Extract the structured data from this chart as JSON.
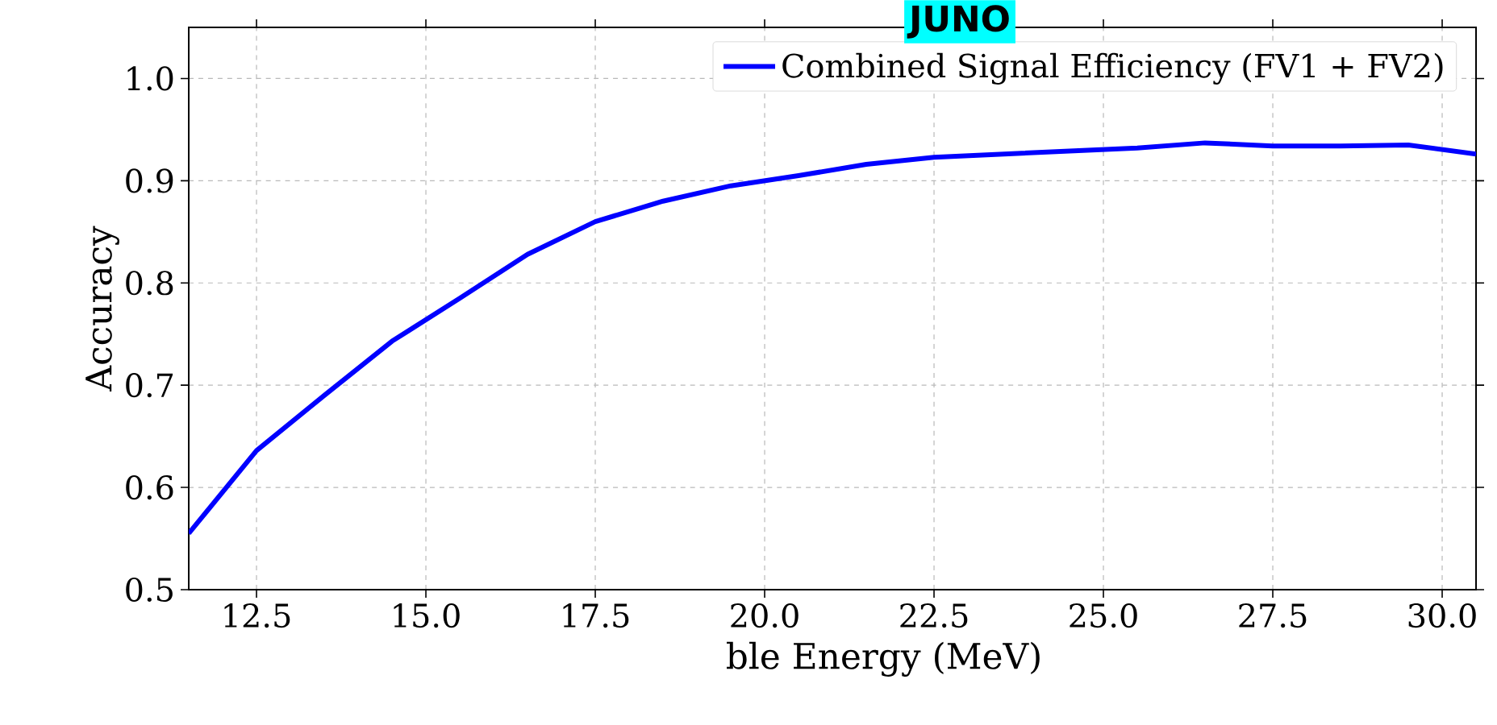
{
  "chart_data": {
    "type": "line",
    "xlabel": "ble Energy (MeV)",
    "ylabel": "Accuracy",
    "annotations": [
      "JUNO"
    ],
    "x": [
      11.5,
      12.5,
      13.5,
      14.5,
      15.5,
      16.5,
      17.5,
      18.5,
      19.5,
      20.5,
      21.5,
      22.5,
      23.5,
      24.5,
      25.5,
      26.5,
      27.5,
      28.5,
      29.5,
      30.5
    ],
    "series": [
      {
        "name": "Combined Signal Efficiency (FV1 + FV2)",
        "color": "#0000ff",
        "values": [
          0.555,
          0.636,
          0.69,
          0.743,
          0.785,
          0.828,
          0.86,
          0.88,
          0.895,
          0.905,
          0.916,
          0.923,
          0.926,
          0.929,
          0.932,
          0.937,
          0.934,
          0.934,
          0.935,
          0.926
        ]
      }
    ],
    "xlim": [
      11.5,
      30.5
    ],
    "ylim": [
      0.5,
      1.05
    ],
    "xticks": [
      {
        "value": 12.5,
        "label": "12.5"
      },
      {
        "value": 15,
        "label": "15.0"
      },
      {
        "value": 17.5,
        "label": "17.5"
      },
      {
        "value": 20,
        "label": "20.0"
      },
      {
        "value": 22.5,
        "label": "22.5"
      },
      {
        "value": 25,
        "label": "25.0"
      },
      {
        "value": 27.5,
        "label": "27.5"
      },
      {
        "value": 30,
        "label": "30.0"
      }
    ],
    "yticks": [
      {
        "value": 0.5,
        "label": "0.5"
      },
      {
        "value": 0.6,
        "label": "0.6"
      },
      {
        "value": 0.7,
        "label": "0.7"
      },
      {
        "value": 0.8,
        "label": "0.8"
      },
      {
        "value": 0.9,
        "label": "0.9"
      },
      {
        "value": 1.0,
        "label": "1.0"
      }
    ],
    "grid": true,
    "legend": "top right",
    "marker": "none",
    "line_style": "solid"
  }
}
